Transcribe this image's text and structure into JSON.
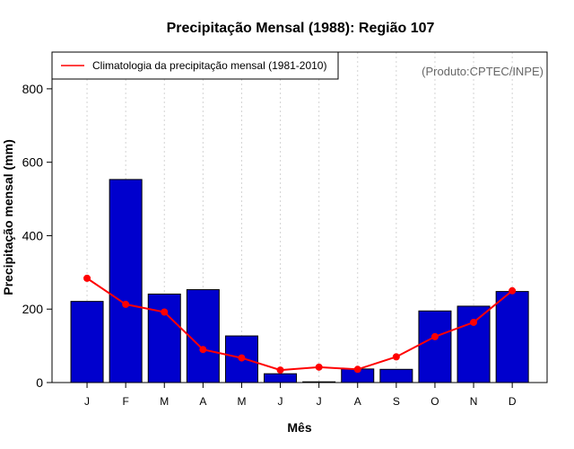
{
  "chart_data": {
    "type": "bar",
    "title": "Precipitação Mensal (1988): Região 107",
    "xlabel": "Mês",
    "ylabel": "Precipitação mensal (mm)",
    "ylim": [
      0,
      900
    ],
    "yticks": [
      0,
      200,
      400,
      600,
      800
    ],
    "grid": "vertical-dotted",
    "categories": [
      "J",
      "F",
      "M",
      "A",
      "M",
      "J",
      "J",
      "A",
      "S",
      "O",
      "N",
      "D"
    ],
    "series": [
      {
        "name": "Precipitação mensal (1988)",
        "kind": "bar",
        "color": "#0000CD",
        "values": [
          221,
          553,
          241,
          253,
          127,
          24,
          2,
          37,
          36,
          195,
          208,
          248
        ]
      },
      {
        "name": "Climatologia da precipitação mensal (1981-2010)",
        "kind": "line",
        "color": "#FF0000",
        "values": [
          284,
          213,
          192,
          90,
          67,
          34,
          42,
          36,
          70,
          125,
          164,
          250
        ]
      }
    ],
    "legend": {
      "position": "top-left",
      "label": "Climatologia da precipitação mensal (1981-2010)"
    },
    "credit": "(Produto:CPTEC/INPE)"
  }
}
